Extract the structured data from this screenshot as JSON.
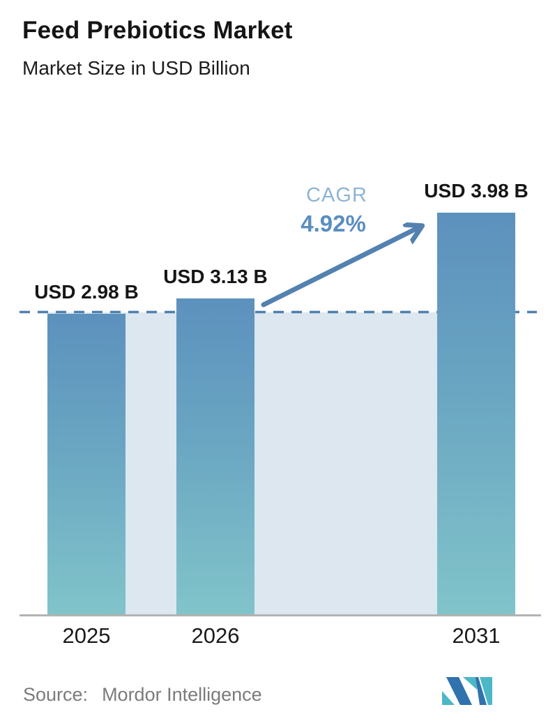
{
  "header": {
    "title": "Feed Prebiotics Market",
    "subtitle": "Market Size in USD Billion"
  },
  "chart_data": {
    "type": "bar",
    "title": "Feed Prebiotics Market",
    "subtitle": "Market Size in USD Billion",
    "categories": [
      "2025",
      "2026",
      "2031"
    ],
    "values": [
      2.98,
      3.13,
      3.98
    ],
    "bar_labels": [
      "USD 2.98 B",
      "USD 3.13 B",
      "USD 3.98 B"
    ],
    "unit": "USD Billion",
    "ylim": [
      0,
      4.35
    ],
    "grid": false,
    "legend": "none",
    "baseline_reference_value": 2.98,
    "annotation": {
      "label": "CAGR",
      "value": "4.92%"
    },
    "colors": {
      "bar_gradient_top": "#5c91bd",
      "bar_gradient_bottom": "#81c4ca",
      "background_band": "#dce7f0",
      "dashed_line": "#4f80ad",
      "arrow": "#5381b0",
      "cagr_label": "#8fb4d3",
      "cagr_value": "#5a8dc0",
      "axis_line": "#b3b3b3",
      "text": "#1a1a1a",
      "source_text": "#7b7b7b",
      "logo_blue": "#2f72ad",
      "logo_teal": "#4cb8c7"
    }
  },
  "footer": {
    "source_label": "Source:",
    "source_value": "Mordor Intelligence",
    "logo": "mordor-intelligence-logo"
  }
}
